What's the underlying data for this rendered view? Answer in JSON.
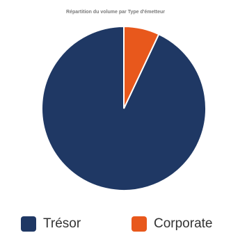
{
  "chart_data": {
    "type": "pie",
    "title": "Répartition du volume par Type d'émetteur",
    "categories": [
      "Trésor",
      "Corporate"
    ],
    "values": [
      93,
      7
    ],
    "colors": [
      "#1f3864",
      "#e8581c"
    ],
    "legend_position": "bottom"
  }
}
